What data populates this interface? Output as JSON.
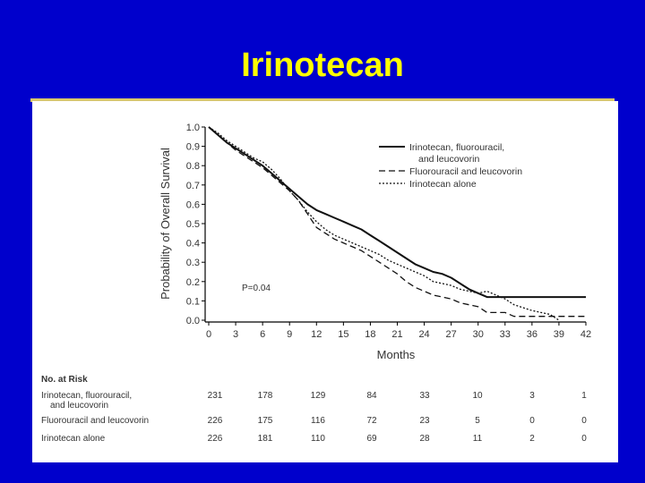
{
  "slide": {
    "title": "Irinotecan"
  },
  "chart_data": {
    "type": "line",
    "title": "",
    "xlabel": "Months",
    "ylabel": "Probability of Overall Survival",
    "xlim": [
      0,
      42
    ],
    "ylim": [
      0,
      1
    ],
    "x_ticks": [
      "0",
      "3",
      "6",
      "9",
      "12",
      "15",
      "18",
      "21",
      "24",
      "27",
      "30",
      "33",
      "36",
      "39",
      "42"
    ],
    "y_ticks": [
      "0.0",
      "0.1",
      "0.2",
      "0.3",
      "0.4",
      "0.5",
      "0.6",
      "0.7",
      "0.8",
      "0.9",
      "1.0"
    ],
    "annotation": "P=0.04",
    "legend_position": "top-right",
    "grid": false,
    "series": [
      {
        "name": "Irinotecan, fluorouracil, and leucovorin",
        "legend_lines": [
          "Irinotecan, fluorouracil,",
          "and leucovorin"
        ],
        "style": "solid",
        "points": [
          [
            0,
            1.0
          ],
          [
            1,
            0.96
          ],
          [
            2,
            0.92
          ],
          [
            3,
            0.89
          ],
          [
            4,
            0.86
          ],
          [
            5,
            0.83
          ],
          [
            6,
            0.8
          ],
          [
            7,
            0.76
          ],
          [
            8,
            0.72
          ],
          [
            9,
            0.68
          ],
          [
            10,
            0.64
          ],
          [
            11,
            0.6
          ],
          [
            12,
            0.57
          ],
          [
            13,
            0.55
          ],
          [
            14,
            0.53
          ],
          [
            15,
            0.51
          ],
          [
            16,
            0.49
          ],
          [
            17,
            0.47
          ],
          [
            18,
            0.44
          ],
          [
            19,
            0.41
          ],
          [
            20,
            0.38
          ],
          [
            21,
            0.35
          ],
          [
            22,
            0.32
          ],
          [
            23,
            0.29
          ],
          [
            24,
            0.27
          ],
          [
            25,
            0.25
          ],
          [
            26,
            0.24
          ],
          [
            27,
            0.22
          ],
          [
            28,
            0.19
          ],
          [
            29,
            0.16
          ],
          [
            30,
            0.14
          ],
          [
            31,
            0.12
          ],
          [
            42,
            0.12
          ]
        ]
      },
      {
        "name": "Fluorouracil and leucovorin",
        "legend_lines": [
          "Fluorouracil and leucovorin"
        ],
        "style": "dashed",
        "points": [
          [
            0,
            1.0
          ],
          [
            1,
            0.96
          ],
          [
            2,
            0.92
          ],
          [
            3,
            0.88
          ],
          [
            4,
            0.85
          ],
          [
            5,
            0.82
          ],
          [
            6,
            0.79
          ],
          [
            7,
            0.75
          ],
          [
            8,
            0.71
          ],
          [
            9,
            0.67
          ],
          [
            10,
            0.62
          ],
          [
            11,
            0.55
          ],
          [
            12,
            0.48
          ],
          [
            13,
            0.45
          ],
          [
            14,
            0.42
          ],
          [
            15,
            0.4
          ],
          [
            16,
            0.38
          ],
          [
            17,
            0.36
          ],
          [
            18,
            0.33
          ],
          [
            19,
            0.3
          ],
          [
            20,
            0.27
          ],
          [
            21,
            0.24
          ],
          [
            22,
            0.2
          ],
          [
            23,
            0.17
          ],
          [
            24,
            0.15
          ],
          [
            25,
            0.13
          ],
          [
            27,
            0.11
          ],
          [
            28,
            0.09
          ],
          [
            30,
            0.07
          ],
          [
            31,
            0.04
          ],
          [
            33,
            0.04
          ],
          [
            34,
            0.02
          ],
          [
            42,
            0.02
          ]
        ]
      },
      {
        "name": "Irinotecan alone",
        "legend_lines": [
          "Irinotecan alone"
        ],
        "style": "dotted",
        "points": [
          [
            0,
            1.0
          ],
          [
            1,
            0.97
          ],
          [
            2,
            0.93
          ],
          [
            3,
            0.9
          ],
          [
            4,
            0.87
          ],
          [
            5,
            0.84
          ],
          [
            6,
            0.82
          ],
          [
            7,
            0.78
          ],
          [
            8,
            0.73
          ],
          [
            9,
            0.67
          ],
          [
            10,
            0.62
          ],
          [
            11,
            0.56
          ],
          [
            12,
            0.51
          ],
          [
            13,
            0.47
          ],
          [
            14,
            0.44
          ],
          [
            15,
            0.42
          ],
          [
            16,
            0.4
          ],
          [
            17,
            0.38
          ],
          [
            18,
            0.36
          ],
          [
            19,
            0.34
          ],
          [
            20,
            0.31
          ],
          [
            21,
            0.29
          ],
          [
            22,
            0.27
          ],
          [
            23,
            0.25
          ],
          [
            24,
            0.23
          ],
          [
            25,
            0.2
          ],
          [
            27,
            0.18
          ],
          [
            28,
            0.16
          ],
          [
            30,
            0.14
          ],
          [
            31,
            0.15
          ],
          [
            33,
            0.11
          ],
          [
            34,
            0.08
          ],
          [
            36,
            0.05
          ],
          [
            38,
            0.03
          ],
          [
            39,
            0.0
          ]
        ]
      }
    ],
    "risk_table": {
      "title": "No. at Risk",
      "times": [
        0,
        6,
        12,
        18,
        24,
        30,
        36,
        42
      ],
      "rows": [
        {
          "label_lines": [
            "Irinotecan, fluorouracil,",
            "and leucovorin"
          ],
          "values": [
            "231",
            "178",
            "129",
            "84",
            "33",
            "10",
            "3",
            "1"
          ]
        },
        {
          "label_lines": [
            "Fluorouracil and leucovorin"
          ],
          "values": [
            "226",
            "175",
            "116",
            "72",
            "23",
            "5",
            "0",
            "0"
          ]
        },
        {
          "label_lines": [
            "Irinotecan alone"
          ],
          "values": [
            "226",
            "181",
            "110",
            "69",
            "28",
            "11",
            "2",
            "0"
          ]
        }
      ]
    }
  }
}
